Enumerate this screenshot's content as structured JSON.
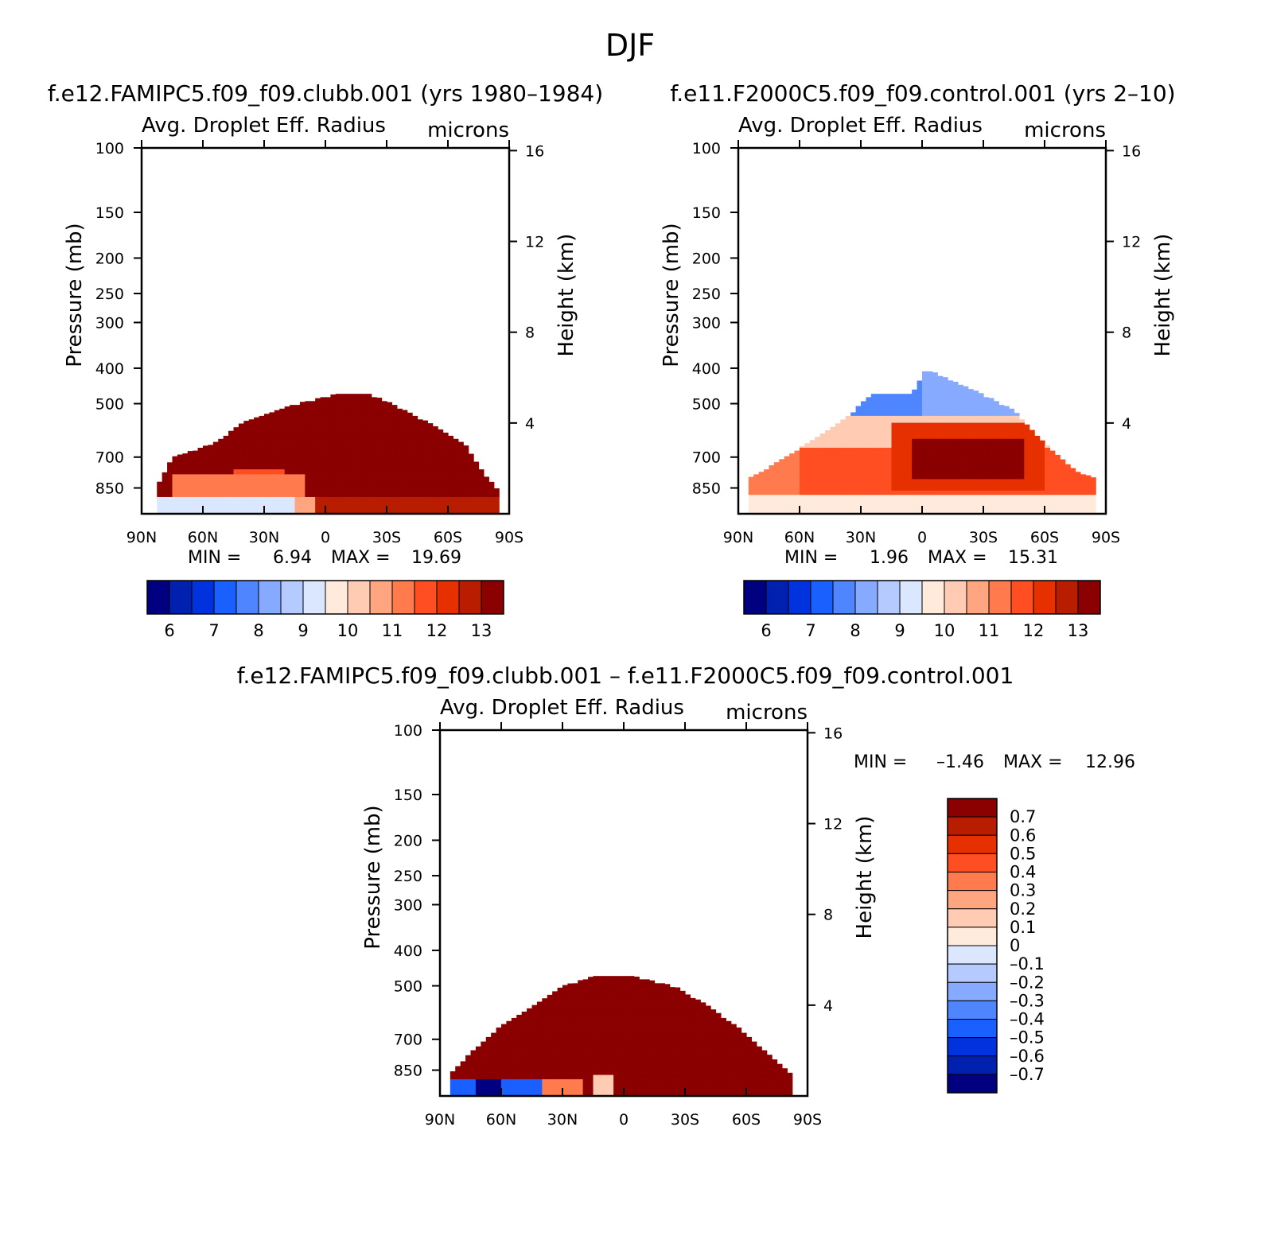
{
  "season": "DJF",
  "colors": {
    "diverging": [
      "#000080",
      "#0020b0",
      "#0033dd",
      "#1a5fff",
      "#4f86ff",
      "#86aaff",
      "#b5cbff",
      "#dbe7ff",
      "#ffeadb",
      "#ffcbb3",
      "#ffa57f",
      "#ff7a4d",
      "#ff4e22",
      "#e63000",
      "#b81d00",
      "#8b0000"
    ],
    "plot_border": "#000000"
  },
  "chart_data": [
    {
      "id": "test",
      "type": "heatmap",
      "run_title": "f.e12.FAMIPC5.f09_f09.clubb.001 (yrs 1980–1984)",
      "variable": "Avg. Droplet Eff. Radius",
      "units": "microns",
      "ylabel_left": "Pressure (mb)",
      "ylabel_right": "Height (km)",
      "x_ticks": [
        "90N",
        "60N",
        "30N",
        "0",
        "30S",
        "60S",
        "90S"
      ],
      "x_range": [
        90,
        -90
      ],
      "y_ticks_left": [
        100,
        150,
        200,
        250,
        300,
        400,
        500,
        700,
        850
      ],
      "y_range": [
        100,
        1000
      ],
      "y_ticks_right": [
        16,
        12,
        8,
        4
      ],
      "min_label": "MIN =",
      "min": "6.94",
      "max_label": "MAX =",
      "max": "19.69",
      "levels": [
        "6",
        "7",
        "8",
        "9",
        "10",
        "11",
        "12",
        "13"
      ],
      "fields": {
        "kind": "abs_clubb",
        "cloud_top_mb": [
          [
            83,
            850
          ],
          [
            75,
            700
          ],
          [
            55,
            640
          ],
          [
            40,
            560
          ],
          [
            15,
            500
          ],
          [
            -5,
            470
          ],
          [
            -22,
            470
          ],
          [
            -33,
            500
          ],
          [
            -50,
            560
          ],
          [
            -68,
            640
          ],
          [
            -78,
            780
          ],
          [
            -84,
            850
          ]
        ]
      }
    },
    {
      "id": "control",
      "type": "heatmap",
      "run_title": "f.e11.F2000C5.f09_f09.control.001 (yrs 2–10)",
      "variable": "Avg. Droplet Eff. Radius",
      "units": "microns",
      "ylabel_left": "Pressure (mb)",
      "ylabel_right": "Height (km)",
      "x_ticks": [
        "90N",
        "60N",
        "30N",
        "0",
        "30S",
        "60S",
        "90S"
      ],
      "x_range": [
        90,
        -90
      ],
      "y_ticks_left": [
        100,
        150,
        200,
        250,
        300,
        400,
        500,
        700,
        850
      ],
      "y_range": [
        100,
        1000
      ],
      "y_ticks_right": [
        16,
        12,
        8,
        4
      ],
      "min_label": "MIN =",
      "min": "1.96",
      "max_label": "MAX =",
      "max": "15.31",
      "levels": [
        "6",
        "7",
        "8",
        "9",
        "10",
        "11",
        "12",
        "13"
      ],
      "fields": {
        "kind": "abs_control",
        "cloud_top_mb": [
          [
            85,
            800
          ],
          [
            60,
            660
          ],
          [
            40,
            560
          ],
          [
            25,
            470
          ],
          [
            5,
            470
          ],
          [
            -2,
            400
          ],
          [
            -30,
            470
          ],
          [
            -45,
            520
          ],
          [
            -55,
            600
          ],
          [
            -75,
            760
          ],
          [
            -85,
            800
          ]
        ]
      }
    },
    {
      "id": "diff",
      "type": "heatmap",
      "run_title": "f.e12.FAMIPC5.f09_f09.clubb.001 – f.e11.F2000C5.f09_f09.control.001",
      "variable": "Avg. Droplet Eff. Radius",
      "units": "microns",
      "ylabel_left": "Pressure (mb)",
      "ylabel_right": "Height (km)",
      "x_ticks": [
        "90N",
        "60N",
        "30N",
        "0",
        "30S",
        "60S",
        "90S"
      ],
      "x_range": [
        90,
        -90
      ],
      "y_ticks_left": [
        100,
        150,
        200,
        250,
        300,
        400,
        500,
        700,
        850
      ],
      "y_range": [
        100,
        1000
      ],
      "y_ticks_right": [
        16,
        12,
        8,
        4
      ],
      "min_label": "MIN =",
      "min": "–1.46",
      "max_label": "MAX =",
      "max": "12.96",
      "levels": [
        "0.7",
        "0.6",
        "0.5",
        "0.4",
        "0.3",
        "0.2",
        "0.1",
        "0",
        "–0.1",
        "–0.2",
        "–0.3",
        "–0.4",
        "–0.5",
        "–0.6",
        "–0.7"
      ],
      "fields": {
        "kind": "difference",
        "cloud_top_mb": [
          [
            85,
            870
          ],
          [
            75,
            760
          ],
          [
            60,
            640
          ],
          [
            45,
            570
          ],
          [
            30,
            500
          ],
          [
            15,
            470
          ],
          [
            -5,
            470
          ],
          [
            -25,
            500
          ],
          [
            -40,
            560
          ],
          [
            -55,
            640
          ],
          [
            -70,
            760
          ],
          [
            -82,
            870
          ]
        ]
      }
    }
  ]
}
